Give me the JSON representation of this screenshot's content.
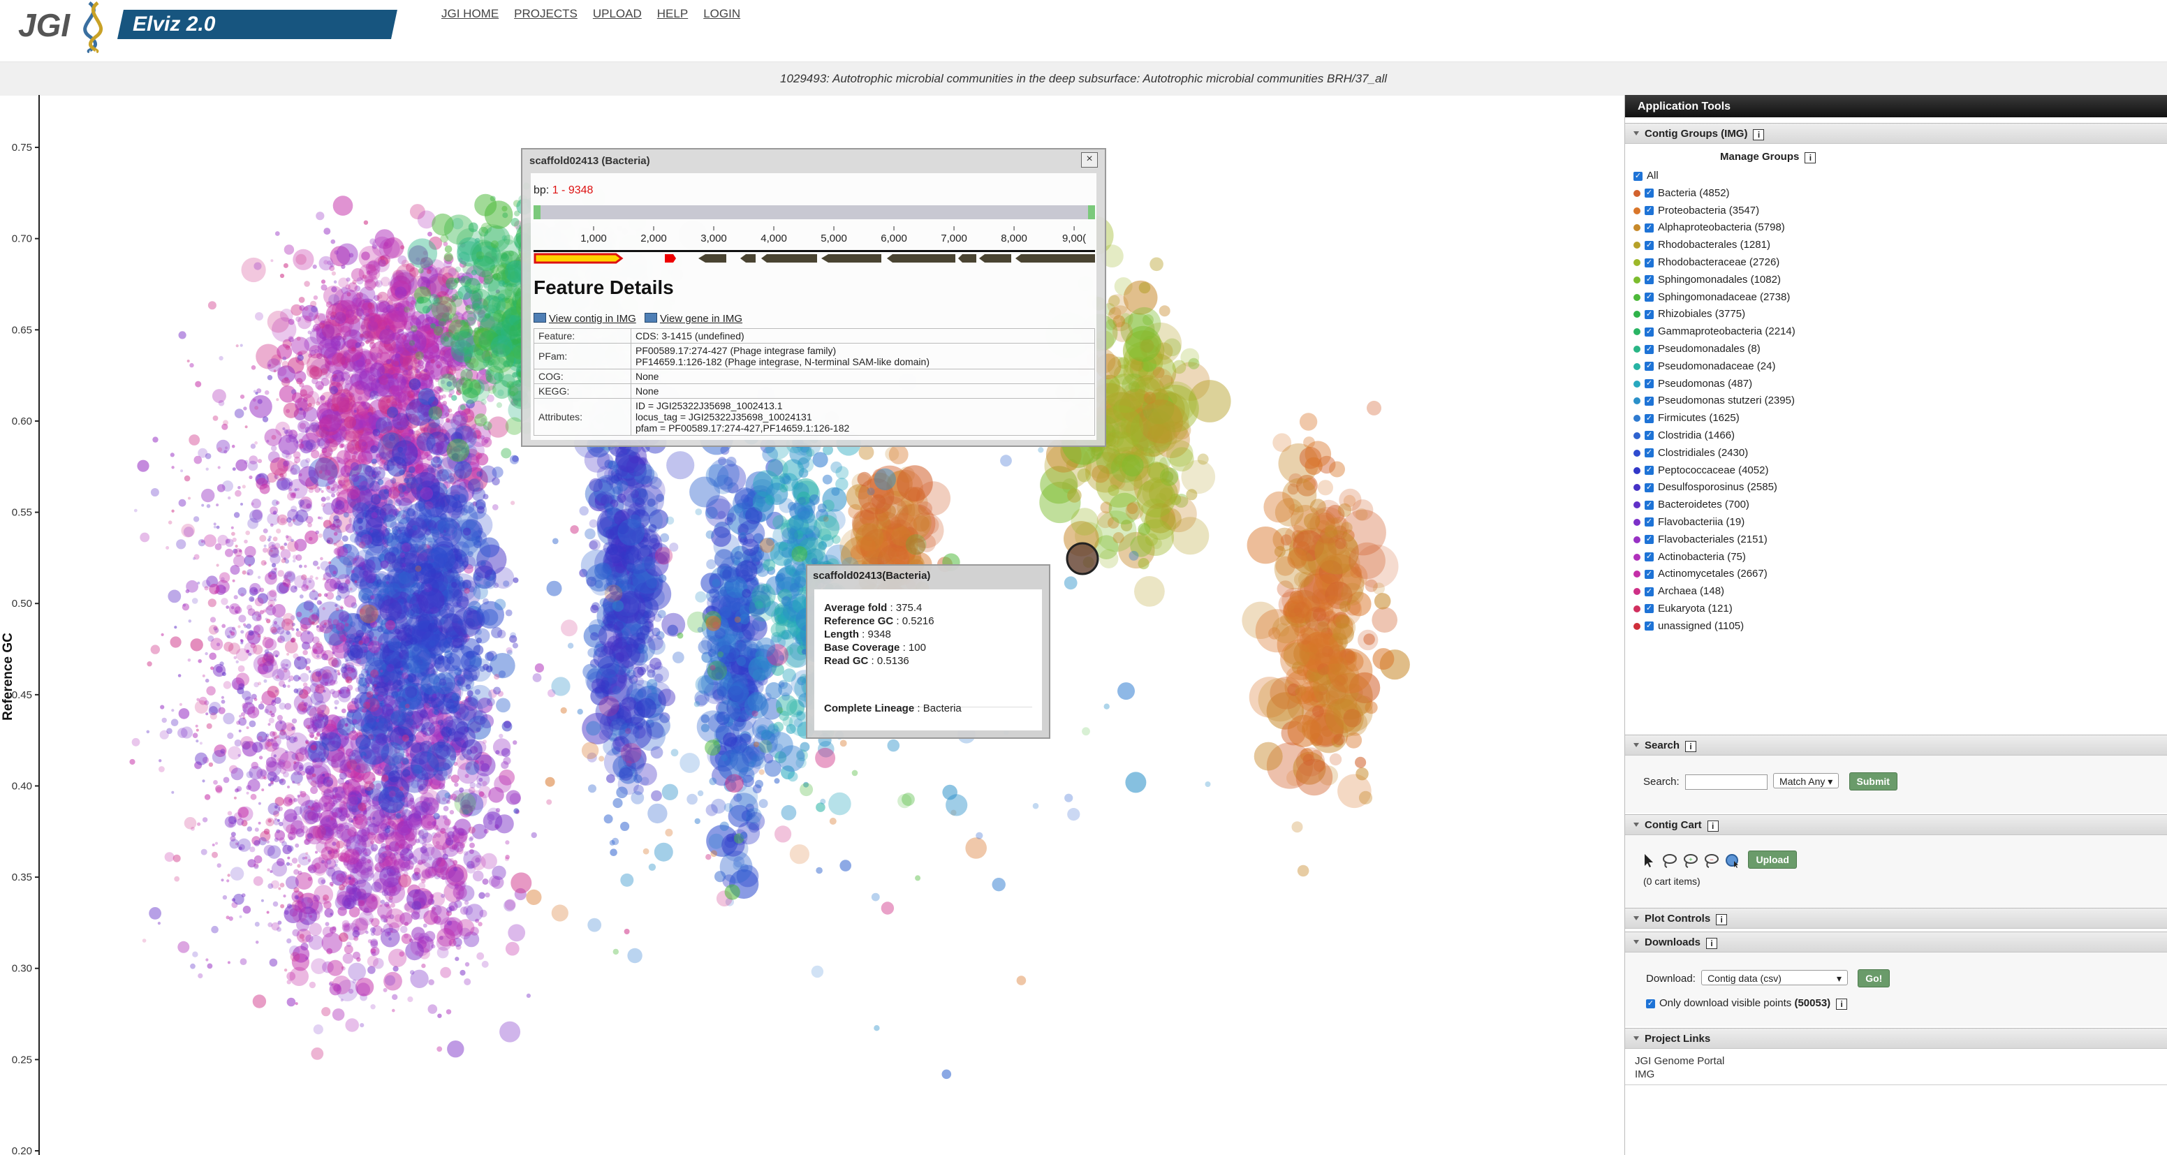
{
  "header": {
    "logo_text": "JGI",
    "app_name": "Elviz 2.0",
    "nav": [
      "JGI HOME",
      "PROJECTS",
      "UPLOAD",
      "HELP",
      "LOGIN"
    ]
  },
  "project_title": "1029493: Autotrophic microbial communities in the deep subsurface: Autotrophic microbial communities BRH/37_all",
  "plot": {
    "y_axis_label": "Reference GC",
    "y_ticks": [
      "0.75",
      "0.70",
      "0.65",
      "0.60",
      "0.55",
      "0.50",
      "0.45",
      "0.40",
      "0.35",
      "0.30",
      "0.25",
      "0.20"
    ]
  },
  "feature_popup": {
    "title": "scaffold02413 (Bacteria)",
    "close_label": "×",
    "bp_label": "bp:",
    "bp_range": "1 - 9348",
    "ticks": [
      "1,000",
      "2,000",
      "3,000",
      "4,000",
      "5,000",
      "6,000",
      "7,000",
      "8,000",
      "9,00("
    ],
    "heading": "Feature Details",
    "link_contig": "View contig in IMG",
    "link_gene": "View gene in IMG",
    "rows": [
      {
        "key": "Feature:",
        "lines": [
          "CDS: 3-1415 (undefined)"
        ]
      },
      {
        "key": "PFam:",
        "lines": [
          "PF00589.17:274-427 (Phage integrase family)",
          "PF14659.1:126-182 (Phage integrase, N-terminal SAM-like domain)"
        ]
      },
      {
        "key": "COG:",
        "lines": [
          "None"
        ]
      },
      {
        "key": "KEGG:",
        "lines": [
          "None"
        ]
      },
      {
        "key": "Attributes:",
        "lines": [
          "ID = JGI25322J35698_1002413.1",
          "locus_tag = JGI25322J35698_10024131",
          "pfam = PF00589.17:274-427,PF14659.1:126-182"
        ]
      }
    ]
  },
  "scaffold_tooltip": {
    "title": "scaffold02413(Bacteria)",
    "avg_fold_label": "Average fold",
    "avg_fold": "375.4",
    "ref_gc_label": "Reference GC",
    "ref_gc": "0.5216",
    "length_label": "Length",
    "length": "9348",
    "base_cov_label": "Base Coverage",
    "base_cov": "100",
    "read_gc_label": "Read GC",
    "read_gc": "0.5136",
    "lineage_label": "Complete Lineage",
    "lineage": "Bacteria"
  },
  "sidebar": {
    "header": "Application Tools",
    "contig_groups": {
      "title": "Contig Groups (IMG)",
      "manage_groups": "Manage Groups",
      "all_label": "All",
      "groups": [
        {
          "label": "Bacteria (4852)",
          "color": "#d2622e"
        },
        {
          "label": "Proteobacteria (3547)",
          "color": "#d9762a"
        },
        {
          "label": "Alphaproteobacteria (5798)",
          "color": "#c7892a"
        },
        {
          "label": "Rhodobacterales (1281)",
          "color": "#b6a12a"
        },
        {
          "label": "Rhodobacteraceae (2726)",
          "color": "#9db82a"
        },
        {
          "label": "Sphingomonadales (1082)",
          "color": "#7cbc2e"
        },
        {
          "label": "Sphingomonadaceae (2738)",
          "color": "#4db93a"
        },
        {
          "label": "Rhizobiales (3775)",
          "color": "#30b34a"
        },
        {
          "label": "Gammaproteobacteria (2214)",
          "color": "#2ab464"
        },
        {
          "label": "Pseudomonadales (8)",
          "color": "#29b585"
        },
        {
          "label": "Pseudomonadaceae (24)",
          "color": "#27b3a4"
        },
        {
          "label": "Pseudomonas (487)",
          "color": "#28a8bf"
        },
        {
          "label": "Pseudomonas stutzeri (2395)",
          "color": "#2a90c9"
        },
        {
          "label": "Firmicutes (1625)",
          "color": "#2f7bd0"
        },
        {
          "label": "Clostridia (1466)",
          "color": "#2f63cf"
        },
        {
          "label": "Clostridiales (2430)",
          "color": "#2f4ccf"
        },
        {
          "label": "Peptococcaceae (4052)",
          "color": "#3138c8"
        },
        {
          "label": "Desulfosporosinus (2585)",
          "color": "#4531c6"
        },
        {
          "label": "Bacteroidetes (700)",
          "color": "#6131c8"
        },
        {
          "label": "Flavobacteriia (19)",
          "color": "#7c31c8"
        },
        {
          "label": "Flavobacteriales (2151)",
          "color": "#9731c4"
        },
        {
          "label": "Actinobacteria (75)",
          "color": "#b031bb"
        },
        {
          "label": "Actinomycetales (2667)",
          "color": "#c42fa8"
        },
        {
          "label": "Archaea (148)",
          "color": "#ce2f86"
        },
        {
          "label": "Eukaryota (121)",
          "color": "#d12f5e"
        },
        {
          "label": "unassigned (1105)",
          "color": "#cf2f3a"
        }
      ]
    },
    "search": {
      "title": "Search",
      "label": "Search:",
      "value": "",
      "match_option": "Match Any",
      "submit": "Submit"
    },
    "contig_cart": {
      "title": "Contig Cart",
      "upload": "Upload",
      "items": "(0 cart items)"
    },
    "plot_controls": {
      "title": "Plot Controls"
    },
    "downloads": {
      "title": "Downloads",
      "label": "Download:",
      "option": "Contig data (csv)",
      "go": "Go!",
      "only_visible": "Only download visible points",
      "visible_count": "(50053)"
    },
    "project_links": {
      "title": "Project Links",
      "links": [
        "JGI Genome Portal",
        "IMG"
      ]
    }
  }
}
